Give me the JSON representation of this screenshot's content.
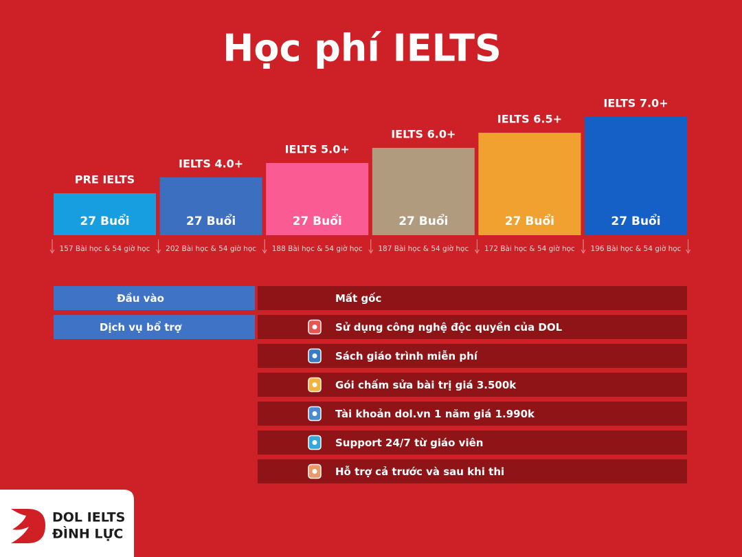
{
  "title": "Học phí IELTS",
  "courses": [
    {
      "name": "PRE IELTS",
      "sessions": "27 Buổi",
      "detail": "157 Bài học & 54 giờ học",
      "color": "#169ee0"
    },
    {
      "name": "IELTS 4.0+",
      "sessions": "27 Buổi",
      "detail": "202 Bài học & 54 giờ học",
      "color": "#3d6fc0"
    },
    {
      "name": "IELTS 5.0+",
      "sessions": "27 Buổi",
      "detail": "188 Bài học & 54 giờ học",
      "color": "#fb5b93"
    },
    {
      "name": "IELTS 6.0+",
      "sessions": "27 Buổi",
      "detail": "187 Bài học & 54 giờ học",
      "color": "#b09b7f"
    },
    {
      "name": "IELTS 6.5+",
      "sessions": "27 Buổi",
      "detail": "172 Bài học & 54 giờ học",
      "color": "#f1a130"
    },
    {
      "name": "IELTS 7.0+",
      "sessions": "27 Buổi",
      "detail": "196 Bài học & 54 giờ học",
      "color": "#1560c7"
    }
  ],
  "entry": {
    "label": "Đầu vào",
    "value": "Mất gốc"
  },
  "services": {
    "label": "Dịch vụ bổ trợ",
    "items": [
      "Sử dụng công nghệ độc quyền của DOL",
      "Sách giáo trình miễn phí",
      "Gói chấm sửa bài trị giá 3.500k",
      "Tài khoản dol.vn 1 năm giá 1.990k",
      "Support 24/7 từ giáo viên",
      "Hỗ trợ cả trước và sau khi thi"
    ]
  },
  "logo": {
    "line1": "DOL IELTS",
    "line2": "ĐÌNH LỰC"
  }
}
